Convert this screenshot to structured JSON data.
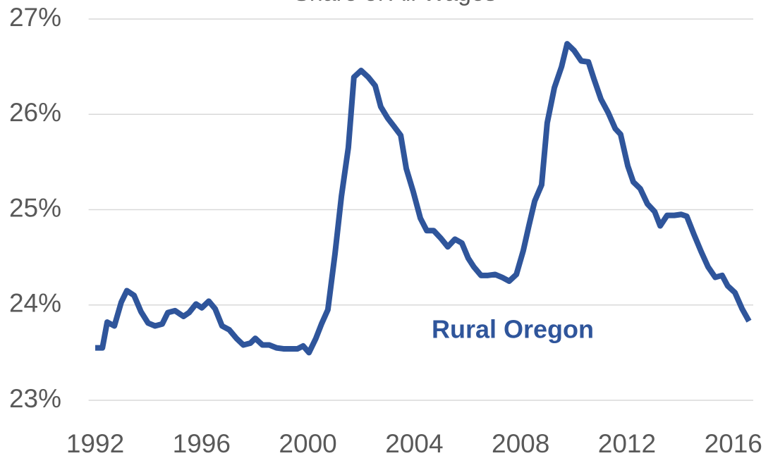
{
  "chart_data": {
    "type": "line",
    "title": "Share of All Wages",
    "annotation": "Rural Oregon",
    "x": [
      1992.0,
      1992.27,
      1992.45,
      1992.72,
      1992.98,
      1993.19,
      1993.46,
      1993.72,
      1993.99,
      1994.25,
      1994.52,
      1994.73,
      1995.0,
      1995.32,
      1995.53,
      1995.79,
      1996.01,
      1996.27,
      1996.51,
      1996.77,
      1997.04,
      1997.31,
      1997.57,
      1997.84,
      1998.02,
      1998.29,
      1998.55,
      1998.82,
      1999.08,
      1999.35,
      1999.61,
      1999.82,
      2000.04,
      2000.3,
      2000.51,
      2000.75,
      2001.02,
      2001.26,
      2001.52,
      2001.73,
      2002.0,
      2002.27,
      2002.53,
      2002.74,
      2003.0,
      2003.22,
      2003.49,
      2003.7,
      2003.96,
      2004.23,
      2004.47,
      2004.73,
      2005.0,
      2005.26,
      2005.53,
      2005.79,
      2006.03,
      2006.24,
      2006.51,
      2006.77,
      2007.04,
      2007.3,
      2007.57,
      2007.84,
      2008.1,
      2008.31,
      2008.53,
      2008.79,
      2009.0,
      2009.27,
      2009.54,
      2009.75,
      2010.01,
      2010.28,
      2010.55,
      2010.76,
      2011.02,
      2011.29,
      2011.56,
      2011.76,
      2012.03,
      2012.24,
      2012.5,
      2012.77,
      2013.04,
      2013.25,
      2013.51,
      2013.78,
      2014.04,
      2014.25,
      2014.52,
      2014.79,
      2015.05,
      2015.32,
      2015.58,
      2015.79,
      2016.06,
      2016.33,
      2016.59
    ],
    "series": [
      {
        "name": "Rural Oregon",
        "color": "#2f559b",
        "values": [
          23.55,
          23.55,
          23.82,
          23.78,
          24.03,
          24.15,
          24.1,
          23.93,
          23.81,
          23.78,
          23.8,
          23.92,
          23.94,
          23.88,
          23.92,
          24.01,
          23.97,
          24.04,
          23.96,
          23.78,
          23.74,
          23.65,
          23.58,
          23.6,
          23.65,
          23.58,
          23.58,
          23.55,
          23.54,
          23.54,
          23.54,
          23.57,
          23.5,
          23.65,
          23.8,
          23.95,
          24.54,
          25.14,
          25.65,
          26.39,
          26.46,
          26.39,
          26.3,
          26.08,
          25.96,
          25.88,
          25.78,
          25.43,
          25.19,
          24.91,
          24.78,
          24.78,
          24.7,
          24.61,
          24.69,
          24.65,
          24.49,
          24.4,
          24.31,
          24.31,
          24.32,
          24.29,
          24.25,
          24.32,
          24.57,
          24.83,
          25.09,
          25.26,
          25.91,
          26.28,
          26.5,
          26.74,
          26.67,
          26.56,
          26.55,
          26.37,
          26.16,
          26.02,
          25.85,
          25.79,
          25.46,
          25.29,
          25.22,
          25.06,
          24.98,
          24.83,
          24.94,
          24.94,
          24.95,
          24.93,
          24.74,
          24.56,
          24.4,
          24.29,
          24.31,
          24.2,
          24.13,
          23.96,
          23.83
        ]
      }
    ],
    "xlim": [
      1991.75,
      2016.75
    ],
    "xticks": [
      1992,
      1996,
      2000,
      2004,
      2008,
      2012,
      2016
    ],
    "ylim": [
      23,
      27
    ],
    "yticks": [
      {
        "value": 23,
        "label": "23%"
      },
      {
        "value": 24,
        "label": "24%"
      },
      {
        "value": 25,
        "label": "25%"
      },
      {
        "value": 26,
        "label": "26%"
      },
      {
        "value": 27,
        "label": "27%"
      }
    ],
    "grid": true
  }
}
